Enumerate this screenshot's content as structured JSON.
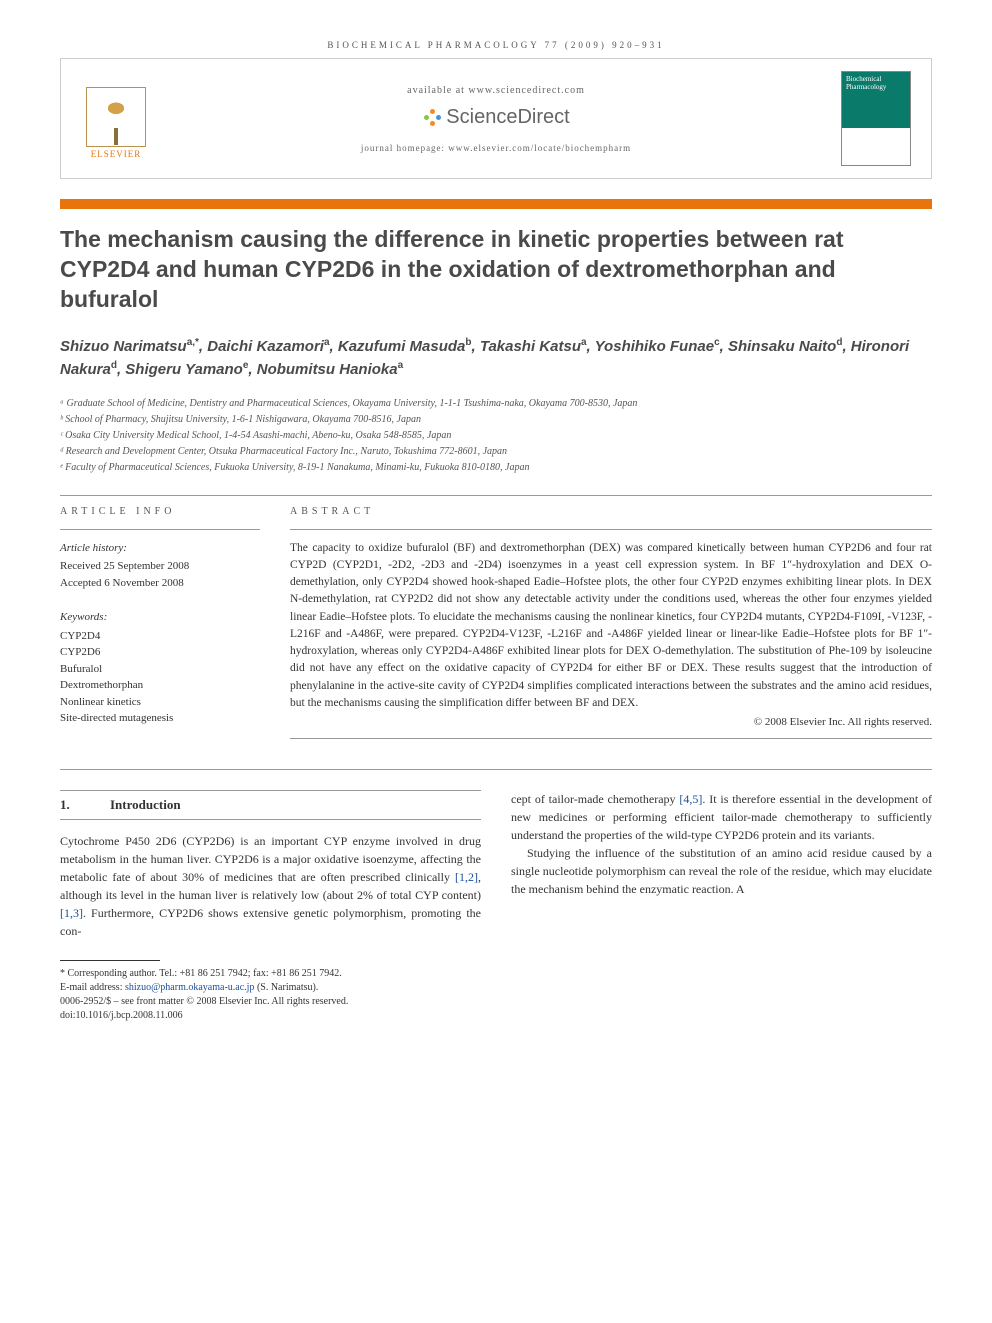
{
  "journal_ref": "BIOCHEMICAL PHARMACOLOGY 77 (2009) 920–931",
  "header": {
    "available": "available at www.sciencedirect.com",
    "sciencedirect": "ScienceDirect",
    "homepage": "journal homepage: www.elsevier.com/locate/biochempharm",
    "elsevier": "ELSEVIER",
    "cover_title": "Biochemical Pharmacology"
  },
  "title": "The mechanism causing the difference in kinetic properties between rat CYP2D4 and human CYP2D6 in the oxidation of dextromethorphan and bufuralol",
  "authors_html": "Shizuo Narimatsu<sup>a,*</sup>, Daichi Kazamori<sup>a</sup>, Kazufumi Masuda<sup>b</sup>, Takashi Katsu<sup>a</sup>, Yoshihiko Funae<sup>c</sup>, Shinsaku Naito<sup>d</sup>, Hironori Nakura<sup>d</sup>, Shigeru Yamano<sup>e</sup>, Nobumitsu Hanioka<sup>a</sup>",
  "affiliations": [
    "ᵃ Graduate School of Medicine, Dentistry and Pharmaceutical Sciences, Okayama University, 1-1-1 Tsushima-naka, Okayama 700-8530, Japan",
    "ᵇ School of Pharmacy, Shujitsu University, 1-6-1 Nishigawara, Okayama 700-8516, Japan",
    "ᶜ Osaka City University Medical School, 1-4-54 Asashi-machi, Abeno-ku, Osaka 548-8585, Japan",
    "ᵈ Research and Development Center, Otsuka Pharmaceutical Factory Inc., Naruto, Tokushima 772-8601, Japan",
    "ᵉ Faculty of Pharmaceutical Sciences, Fukuoka University, 8-19-1 Nanakuma, Minami-ku, Fukuoka 810-0180, Japan"
  ],
  "article_info": {
    "label": "ARTICLE INFO",
    "history_label": "Article history:",
    "received": "Received 25 September 2008",
    "accepted": "Accepted 6 November 2008",
    "keywords_label": "Keywords:",
    "keywords": [
      "CYP2D4",
      "CYP2D6",
      "Bufuralol",
      "Dextromethorphan",
      "Nonlinear kinetics",
      "Site-directed mutagenesis"
    ]
  },
  "abstract": {
    "label": "ABSTRACT",
    "text": "The capacity to oxidize bufuralol (BF) and dextromethorphan (DEX) was compared kinetically between human CYP2D6 and four rat CYP2D (CYP2D1, -2D2, -2D3 and -2D4) isoenzymes in a yeast cell expression system. In BF 1″-hydroxylation and DEX O-demethylation, only CYP2D4 showed hook-shaped Eadie–Hofstee plots, the other four CYP2D enzymes exhibiting linear plots. In DEX N-demethylation, rat CYP2D2 did not show any detectable activity under the conditions used, whereas the other four enzymes yielded linear Eadie–Hofstee plots. To elucidate the mechanisms causing the nonlinear kinetics, four CYP2D4 mutants, CYP2D4-F109I, -V123F, -L216F and -A486F, were prepared. CYP2D4-V123F, -L216F and -A486F yielded linear or linear-like Eadie–Hofstee plots for BF 1″-hydroxylation, whereas only CYP2D4-A486F exhibited linear plots for DEX O-demethylation. The substitution of Phe-109 by isoleucine did not have any effect on the oxidative capacity of CYP2D4 for either BF or DEX. These results suggest that the introduction of phenylalanine in the active-site cavity of CYP2D4 simplifies complicated interactions between the substrates and the amino acid residues, but the mechanisms causing the simplification differ between BF and DEX.",
    "copyright": "© 2008 Elsevier Inc. All rights reserved."
  },
  "intro": {
    "num": "1.",
    "heading": "Introduction",
    "p1": "Cytochrome P450 2D6 (CYP2D6) is an important CYP enzyme involved in drug metabolism in the human liver. CYP2D6 is a major oxidative isoenzyme, affecting the metabolic fate of about 30% of medicines that are often prescribed clinically ",
    "ref1": "[1,2]",
    "p1b": ", although its level in the human liver is relatively low (about 2% of total CYP content) ",
    "ref2": "[1,3]",
    "p1c": ". Furthermore, CYP2D6 shows extensive genetic polymorphism, promoting the con-",
    "p2a": "cept of tailor-made chemotherapy ",
    "ref3": "[4,5]",
    "p2b": ". It is therefore essential in the development of new medicines or performing efficient tailor-made chemotherapy to sufficiently understand the properties of the wild-type CYP2D6 protein and its variants.",
    "p3": "Studying the influence of the substitution of an amino acid residue caused by a single nucleotide polymorphism can reveal the role of the residue, which may elucidate the mechanism behind the enzymatic reaction. A"
  },
  "footnotes": {
    "corresponding": "* Corresponding author. Tel.: +81 86 251 7942; fax: +81 86 251 7942.",
    "email_label": "E-mail address: ",
    "email": "shizuo@pharm.okayama-u.ac.jp",
    "email_suffix": " (S. Narimatsu).",
    "copyright_line": "0006-2952/$ – see front matter © 2008 Elsevier Inc. All rights reserved.",
    "doi": "doi:10.1016/j.bcp.2008.11.006"
  },
  "colors": {
    "orange": "#e8750b",
    "teal": "#0a7a6a",
    "link": "#1a4f9c",
    "sd_orange": "#f68b1f",
    "sd_green": "#8bc53f",
    "sd_blue": "#4a90d9"
  }
}
